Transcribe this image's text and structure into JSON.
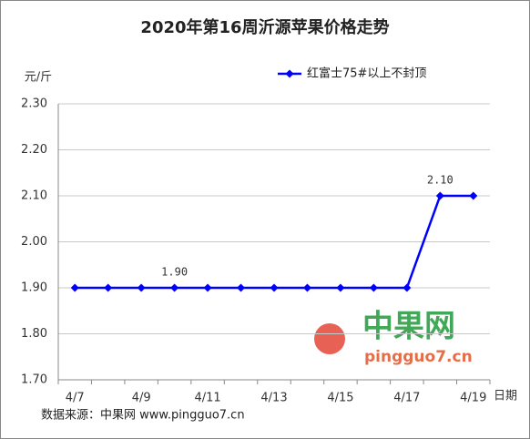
{
  "chart_data": {
    "type": "line",
    "title": "2020年第16周沂源苹果价格走势",
    "y_label": "元/斤",
    "x_label": "日期",
    "source": "数据来源：中果网 www.pingguo7.cn",
    "watermark": {
      "name": "中果网",
      "url": "pingguo7.cn"
    },
    "categories": [
      "4/7",
      null,
      "4/9",
      null,
      "4/11",
      null,
      "4/13",
      null,
      "4/15",
      null,
      "4/17",
      null,
      "4/19"
    ],
    "series": [
      {
        "name": "红富士75#以上不封顶",
        "color": "#0000ff",
        "values": [
          1.9,
          1.9,
          1.9,
          1.9,
          1.9,
          1.9,
          1.9,
          1.9,
          1.9,
          1.9,
          1.9,
          2.1,
          2.1
        ],
        "value_labels": [
          null,
          null,
          null,
          "1.90",
          null,
          null,
          null,
          null,
          null,
          null,
          null,
          "2.10",
          null
        ]
      }
    ],
    "ylim": [
      1.7,
      2.3
    ],
    "yticks": [
      {
        "value": 1.7,
        "label": "1.70"
      },
      {
        "value": 1.8,
        "label": "1.80"
      },
      {
        "value": 1.9,
        "label": "1.90"
      },
      {
        "value": 2.0,
        "label": "2.00"
      },
      {
        "value": 2.1,
        "label": "2.10"
      },
      {
        "value": 2.2,
        "label": "2.20"
      },
      {
        "value": 2.3,
        "label": "2.30"
      }
    ],
    "grid": true,
    "legend": "top-right"
  }
}
